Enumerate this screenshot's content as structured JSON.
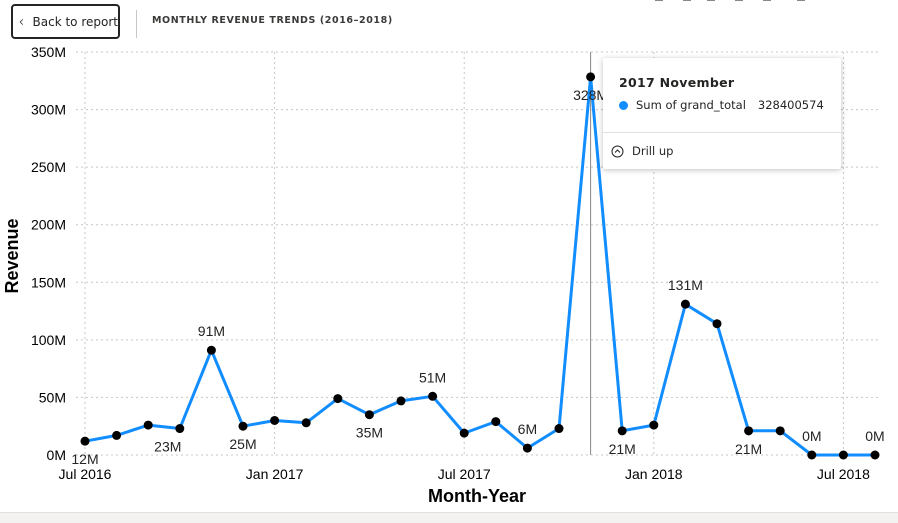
{
  "header": {
    "back_label": "Back to report",
    "title": "MONTHLY REVENUE TRENDS (2016–2018)"
  },
  "tooltip": {
    "title": "2017 November",
    "measure": "Sum of grand_total",
    "value": "328400574",
    "drill_label": "Drill up"
  },
  "icons": {
    "back": "chevron-left-icon",
    "drill": "drill-up-icon",
    "series_marker": "series-dot-icon"
  },
  "colors": {
    "line": "#118DFF",
    "marker": "#000000"
  },
  "chart_data": {
    "type": "line",
    "xlabel": "Month-Year",
    "ylabel": "Revenue",
    "ylim": [
      0,
      350000000
    ],
    "yticks": [
      "0M",
      "50M",
      "100M",
      "150M",
      "200M",
      "250M",
      "300M",
      "350M"
    ],
    "xticks": [
      {
        "index": 0,
        "label": "Jul 2016"
      },
      {
        "index": 6,
        "label": "Jan 2017"
      },
      {
        "index": 12,
        "label": "Jul 2017"
      },
      {
        "index": 18,
        "label": "Jan 2018"
      },
      {
        "index": 24,
        "label": "Jul 2018"
      }
    ],
    "x": [
      "2016-07",
      "2016-08",
      "2016-09",
      "2016-10",
      "2016-11",
      "2016-12",
      "2017-01",
      "2017-02",
      "2017-03",
      "2017-04",
      "2017-05",
      "2017-06",
      "2017-07",
      "2017-08",
      "2017-09",
      "2017-10",
      "2017-11",
      "2017-12",
      "2018-01",
      "2018-02",
      "2018-03",
      "2018-04",
      "2018-05",
      "2018-06",
      "2018-07",
      "2018-08"
    ],
    "series": [
      {
        "name": "Sum of grand_total",
        "values": [
          12000000,
          17000000,
          26000000,
          23000000,
          91000000,
          25000000,
          30000000,
          28000000,
          49000000,
          35000000,
          47000000,
          51000000,
          19000000,
          29000000,
          6000000,
          23000000,
          328400574,
          21000000,
          26000000,
          131000000,
          114000000,
          21000000,
          21000000,
          0,
          0,
          0
        ]
      }
    ],
    "data_labels": [
      {
        "index": 0,
        "text": "12M",
        "pos": "below"
      },
      {
        "index": 3,
        "text": "23M",
        "pos": "below-left"
      },
      {
        "index": 4,
        "text": "91M",
        "pos": "above"
      },
      {
        "index": 5,
        "text": "25M",
        "pos": "below"
      },
      {
        "index": 9,
        "text": "35M",
        "pos": "below"
      },
      {
        "index": 11,
        "text": "51M",
        "pos": "above"
      },
      {
        "index": 14,
        "text": "6M",
        "pos": "above"
      },
      {
        "index": 16,
        "text": "328M",
        "pos": "below"
      },
      {
        "index": 17,
        "text": "21M",
        "pos": "below"
      },
      {
        "index": 19,
        "text": "131M",
        "pos": "above"
      },
      {
        "index": 21,
        "text": "21M",
        "pos": "below"
      },
      {
        "index": 23,
        "text": "0M",
        "pos": "above"
      },
      {
        "index": 25,
        "text": "0M",
        "pos": "above"
      }
    ],
    "highlight_index": 16,
    "grid": true
  }
}
